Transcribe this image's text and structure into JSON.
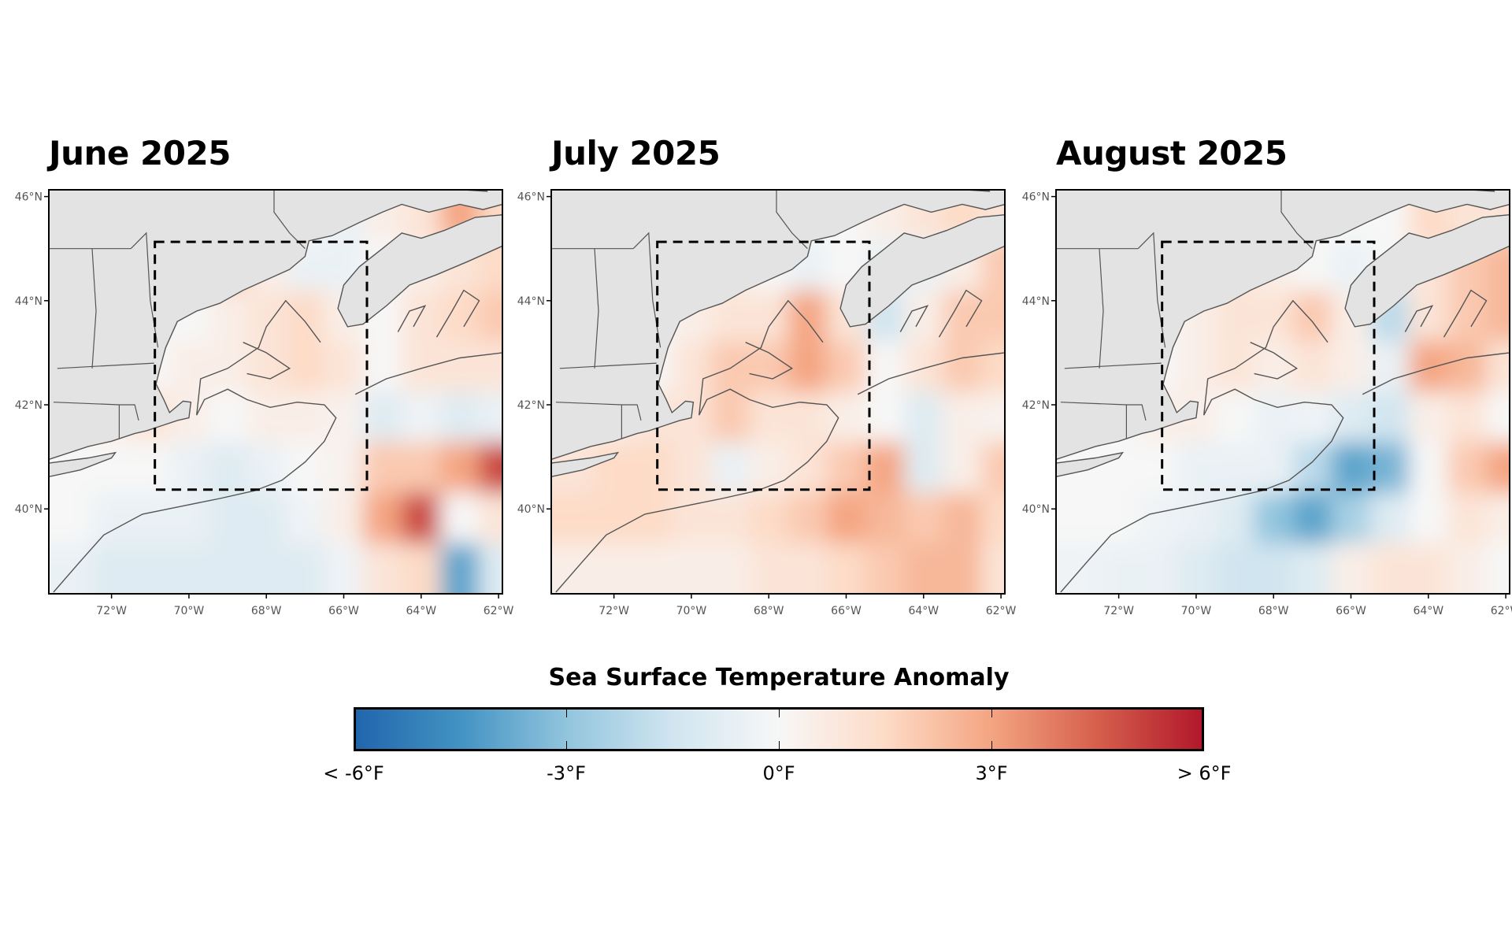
{
  "chart_data": {
    "type": "heatmap",
    "units": "°F",
    "extent": {
      "lon": [
        -73.62,
        -61.9
      ],
      "lat": [
        38.37,
        46.13
      ]
    },
    "study_box": {
      "lon": [
        -70.88,
        -65.4
      ],
      "lat": [
        40.37,
        45.13
      ]
    },
    "lon": [
      -73,
      -72,
      -71,
      -70,
      -69,
      -68,
      -67,
      -66,
      -65,
      -64,
      -63,
      -62
    ],
    "lat": [
      45.6,
      44.6,
      43.6,
      42.6,
      41.6,
      40.6,
      39.6,
      38.8
    ],
    "lon_ticks": [
      "72°W",
      "70°W",
      "68°W",
      "66°W",
      "64°W",
      "62°W"
    ],
    "lon_tick_values": [
      -72,
      -70,
      -68,
      -66,
      -64,
      -62
    ],
    "lat_ticks": [
      "46°N",
      "44°N",
      "42°N",
      "40°N"
    ],
    "lat_tick_values": [
      46,
      44,
      42,
      40
    ],
    "panels": [
      {
        "title": "June 2025",
        "values": [
          [
            0,
            0,
            0,
            0,
            0,
            0,
            0,
            -0.5,
            0.5,
            1,
            3,
            1.5
          ],
          [
            0,
            0,
            0,
            0,
            2,
            0.5,
            -0.5,
            -0.5,
            0,
            0.5,
            1,
            1.5
          ],
          [
            0,
            0,
            0,
            0,
            0.5,
            1,
            1.5,
            0.5,
            0,
            1,
            1.5,
            2
          ],
          [
            0,
            0,
            0,
            0.5,
            0.5,
            1,
            1.5,
            1,
            0,
            1,
            1,
            1
          ],
          [
            0.5,
            0.5,
            1,
            0.5,
            0,
            0.5,
            0.5,
            0.3,
            -1,
            -0.3,
            -1,
            -0.5
          ],
          [
            0,
            0,
            0,
            -0.5,
            -1,
            -0.5,
            0,
            0.3,
            2,
            2,
            3,
            5
          ],
          [
            0,
            -0.5,
            -0.5,
            -0.5,
            -1,
            -1,
            -0.3,
            0.5,
            3,
            5,
            0,
            1
          ],
          [
            -0.5,
            -1,
            -1,
            -1,
            -1,
            -1,
            -1,
            -0.3,
            1,
            1.5,
            -4,
            -1
          ]
        ]
      },
      {
        "title": "July 2025",
        "values": [
          [
            0,
            0,
            0,
            0,
            0,
            0,
            0,
            0,
            0.5,
            1,
            1.5,
            1
          ],
          [
            0,
            0,
            0,
            0,
            0.5,
            0,
            -0.5,
            0,
            -0.5,
            -0.5,
            0.5,
            2
          ],
          [
            0,
            0,
            0,
            0.5,
            1,
            1,
            3,
            1,
            -1.5,
            0.5,
            2,
            2
          ],
          [
            0,
            0,
            0,
            1,
            2,
            2,
            3,
            2,
            0,
            1,
            2,
            1.5
          ],
          [
            0.5,
            0.5,
            1,
            1,
            2,
            1,
            1,
            0.5,
            0,
            -1,
            0.5,
            0.3
          ],
          [
            1,
            1.5,
            1.5,
            1,
            -0.5,
            0.5,
            1,
            2,
            3,
            -1,
            0.5,
            2
          ],
          [
            1.5,
            1.5,
            1.5,
            1,
            1,
            1.5,
            2,
            3,
            2.5,
            2,
            2.5,
            1.5
          ],
          [
            0.5,
            0.5,
            0.5,
            0.5,
            0.5,
            1,
            1,
            1.5,
            2,
            2.5,
            2.5,
            1
          ]
        ]
      },
      {
        "title": "August 2025",
        "values": [
          [
            0,
            0,
            0,
            0,
            0,
            0,
            0,
            0,
            0,
            1.5,
            1,
            1
          ],
          [
            0,
            0,
            0,
            0,
            1,
            0.5,
            0,
            -0.5,
            0,
            1,
            2,
            2.5
          ],
          [
            0,
            0,
            0,
            0.5,
            1,
            1,
            2,
            0.5,
            -2,
            1,
            2,
            2.5
          ],
          [
            0,
            0,
            0,
            0.5,
            1,
            0.5,
            1,
            0.5,
            -0.5,
            3,
            2.5,
            1
          ],
          [
            0,
            0,
            0.5,
            0.5,
            0,
            -0.5,
            -0.3,
            -1,
            -1.5,
            0.5,
            1,
            0
          ],
          [
            0,
            0,
            0,
            -0.5,
            -0.5,
            -0.5,
            -2,
            -4,
            -3.5,
            0,
            2,
            3
          ],
          [
            0,
            0,
            -0.3,
            -0.5,
            -1,
            -3,
            -4,
            -2.5,
            -1,
            0,
            1,
            0.5
          ],
          [
            -0.3,
            -0.5,
            -0.5,
            -1,
            -1.5,
            -1.5,
            -1,
            0.5,
            1,
            1,
            0.5,
            0
          ]
        ]
      }
    ],
    "colorbar": {
      "title": "Sea Surface Temperature Anomaly",
      "range": [
        -6,
        6
      ],
      "colormap": "RdBu_r",
      "tick_values": [
        -6,
        -3,
        0,
        3,
        6
      ],
      "tick_labels": [
        "< -6°F",
        "-3°F",
        "0°F",
        "3°F",
        "> 6°F"
      ]
    },
    "colors": {
      "land": "#e3e3e3",
      "coast": "#555555",
      "cold": "#2166ac",
      "neutral": "#f7f7f7",
      "warm": "#b2182b"
    }
  }
}
